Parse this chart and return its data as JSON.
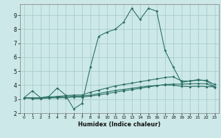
{
  "xlabel": "Humidex (Indice chaleur)",
  "background_color": "#cce8e8",
  "grid_color": "#aacccc",
  "line_color": "#2a6e64",
  "xlim": [
    -0.5,
    23.5
  ],
  "ylim": [
    2.0,
    9.8
  ],
  "xticks": [
    0,
    1,
    2,
    3,
    4,
    5,
    6,
    7,
    8,
    9,
    10,
    11,
    12,
    13,
    14,
    15,
    16,
    17,
    18,
    19,
    20,
    21,
    22,
    23
  ],
  "yticks": [
    2,
    3,
    4,
    5,
    6,
    7,
    8,
    9
  ],
  "line1_y": [
    3.1,
    3.6,
    3.1,
    3.2,
    3.8,
    3.3,
    2.3,
    2.7,
    5.3,
    7.5,
    7.8,
    8.0,
    8.5,
    9.5,
    8.7,
    9.5,
    9.3,
    6.5,
    5.3,
    4.2,
    4.3,
    4.4,
    4.3,
    3.9
  ],
  "line2_y": [
    3.1,
    3.1,
    3.1,
    3.15,
    3.2,
    3.25,
    3.3,
    3.3,
    3.5,
    3.65,
    3.8,
    3.95,
    4.05,
    4.15,
    4.25,
    4.35,
    4.45,
    4.55,
    4.6,
    4.3,
    4.3,
    4.35,
    4.35,
    4.05
  ],
  "line3_y": [
    3.1,
    3.05,
    3.05,
    3.1,
    3.15,
    3.18,
    3.22,
    3.22,
    3.3,
    3.4,
    3.52,
    3.62,
    3.7,
    3.78,
    3.86,
    3.93,
    3.98,
    4.02,
    4.0,
    3.92,
    3.9,
    3.92,
    3.9,
    3.88
  ],
  "line4_y": [
    3.1,
    3.05,
    3.05,
    3.08,
    3.1,
    3.1,
    3.15,
    3.15,
    3.22,
    3.3,
    3.4,
    3.5,
    3.6,
    3.68,
    3.78,
    3.88,
    3.96,
    4.05,
    4.08,
    4.08,
    4.1,
    4.12,
    4.1,
    3.85
  ]
}
